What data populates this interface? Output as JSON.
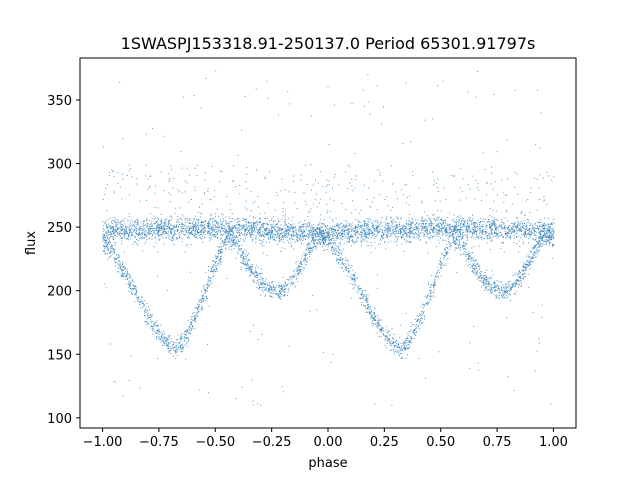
{
  "chart_data": {
    "type": "scatter",
    "title": "1SWASPJ153318.91-250137.0 Period 65301.91797s",
    "xlabel": "phase",
    "ylabel": "flux",
    "xlim": [
      -1.1,
      1.1
    ],
    "ylim": [
      92,
      383
    ],
    "grid": false,
    "point_color": "#1f77b4",
    "x_ticks": [
      -1.0,
      -0.75,
      -0.5,
      -0.25,
      0.0,
      0.25,
      0.5,
      0.75,
      1.0
    ],
    "x_tick_labels": [
      "−1.00",
      "−0.75",
      "−0.50",
      "−0.25",
      "0.00",
      "0.25",
      "0.50",
      "0.75",
      "1.00"
    ],
    "y_ticks": [
      100,
      150,
      200,
      250,
      300,
      350
    ],
    "y_tick_labels": [
      "100",
      "150",
      "200",
      "250",
      "300",
      "350"
    ],
    "series": [
      {
        "description": "folded light curve (phase vs flux) sampled along the visible curve shape",
        "x": [
          -1.0,
          -0.95,
          -0.9,
          -0.85,
          -0.8,
          -0.75,
          -0.7,
          -0.68,
          -0.65,
          -0.6,
          -0.55,
          -0.5,
          -0.45,
          -0.4,
          -0.35,
          -0.3,
          -0.25,
          -0.2,
          -0.15,
          -0.1,
          -0.05,
          0.0,
          0.05,
          0.1,
          0.15,
          0.2,
          0.25,
          0.3,
          0.32,
          0.35,
          0.4,
          0.45,
          0.5,
          0.55,
          0.6,
          0.65,
          0.7,
          0.75,
          0.8,
          0.85,
          0.9,
          0.95,
          1.0
        ],
        "y": [
          240,
          228,
          213,
          197,
          180,
          166,
          156,
          154,
          158,
          175,
          198,
          222,
          243,
          234,
          219,
          207,
          201,
          201,
          211,
          227,
          243,
          240,
          228,
          213,
          197,
          180,
          166,
          156,
          154,
          158,
          175,
          198,
          222,
          243,
          234,
          219,
          207,
          201,
          201,
          211,
          227,
          243,
          240
        ]
      },
      {
        "description": "flat baseline band",
        "x": [
          -1.0,
          -0.5,
          0.0,
          0.5,
          1.0
        ],
        "y": [
          247,
          250,
          246,
          250,
          247
        ]
      }
    ]
  }
}
